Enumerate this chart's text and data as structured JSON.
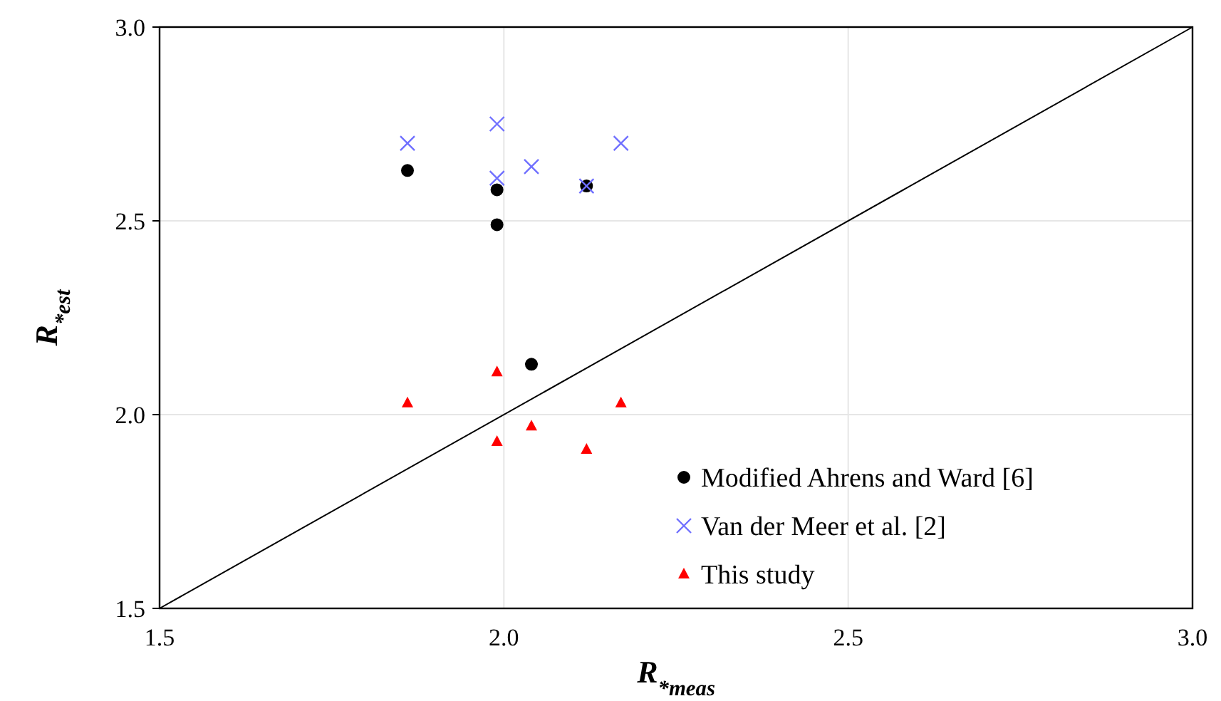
{
  "chart_data": {
    "type": "scatter",
    "xlabel": "R$_{*meas}$",
    "ylabel": "R$_{*est}$",
    "xlim": [
      1.5,
      3.0
    ],
    "ylim": [
      1.5,
      3.0
    ],
    "xticks": [
      1.5,
      {
        "value": 2,
        "label": "2.0"
      },
      2.5,
      {
        "value": 3,
        "label": "3.0"
      }
    ],
    "yticks": [
      1.5,
      {
        "value": 2,
        "label": "2.0"
      },
      2.5,
      {
        "value": 3,
        "label": "3.0"
      }
    ],
    "grid": true,
    "legend": "bottom right",
    "series": [
      {
        "name": "Modified Ahrens and Ward [6]",
        "color": "#000000",
        "marker": "circle",
        "x": [
          1.86,
          1.99,
          1.99,
          2.12,
          2.04
        ],
        "values": [
          2.63,
          2.58,
          2.49,
          2.59,
          2.13
        ]
      },
      {
        "name": "Van der Meer et al. [2]",
        "color": "#7070ff",
        "marker": "cross",
        "x": [
          1.86,
          1.99,
          1.99,
          2.04,
          2.12,
          2.17
        ],
        "values": [
          2.7,
          2.75,
          2.61,
          2.64,
          2.59,
          2.7
        ]
      },
      {
        "name": "This study",
        "color": "#ff0000",
        "marker": "triangle",
        "x": [
          1.86,
          1.99,
          1.99,
          2.04,
          2.12,
          2.17
        ],
        "values": [
          2.03,
          2.11,
          1.93,
          1.97,
          1.91,
          2.03
        ]
      },
      {
        "type": "line",
        "color": "#000000",
        "x": [
          1.5,
          3.0
        ],
        "values": [
          1.5,
          3.0
        ]
      }
    ]
  }
}
